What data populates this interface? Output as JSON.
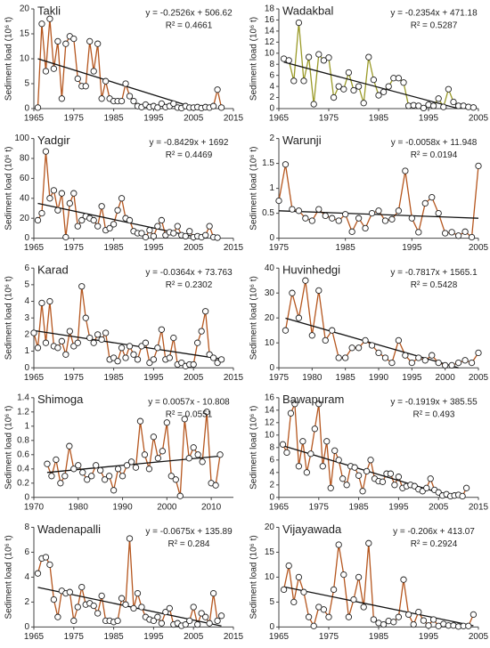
{
  "chart_data": [
    {
      "type": "line",
      "title": "Takli",
      "equation": "y = -0.2526x + 506.62",
      "r_squared": "R² = 0.4661",
      "ylabel": "Sediment load (10⁶ t)",
      "color": "#b5561e",
      "xlim": [
        1965,
        2015
      ],
      "xticks": [
        1965,
        1975,
        1985,
        1995,
        2005,
        2015
      ],
      "ylim": [
        0,
        20
      ],
      "yticks": [
        0,
        5,
        10,
        15,
        20
      ],
      "x": [
        1966,
        1967,
        1968,
        1969,
        1970,
        1971,
        1972,
        1973,
        1974,
        1975,
        1976,
        1977,
        1978,
        1979,
        1980,
        1981,
        1982,
        1983,
        1984,
        1985,
        1986,
        1987,
        1988,
        1989,
        1990,
        1991,
        1992,
        1993,
        1994,
        1995,
        1996,
        1997,
        1998,
        1999,
        2000,
        2001,
        2002,
        2003,
        2004,
        2005,
        2006,
        2007,
        2008,
        2009,
        2010,
        2011,
        2012
      ],
      "values": [
        0.2,
        17,
        7.5,
        18,
        8,
        13.5,
        2,
        13,
        14.5,
        14,
        6,
        4.5,
        4.5,
        13.5,
        7.5,
        13,
        2,
        5.5,
        2,
        1.5,
        1.5,
        1.5,
        5,
        2.5,
        1.5,
        0.5,
        0.3,
        0.8,
        0.3,
        0.5,
        0.2,
        1,
        0.3,
        0.5,
        1,
        0.2,
        0.1,
        0.5,
        0.2,
        0.2,
        0.3,
        0.1,
        0.3,
        0.2,
        0.5,
        3.8,
        0.2
      ],
      "trendline": {
        "x": [
          1966,
          2006
        ],
        "values": [
          10.0,
          0
        ]
      }
    },
    {
      "type": "line",
      "title": "Wadakbal",
      "equation": "y = -0.2354x + 471.18",
      "r_squared": "R² = 0.5287",
      "ylabel": "Sediment load (10⁶ t)",
      "color": "#9a9a28",
      "xlim": [
        1965,
        2005
      ],
      "xticks": [
        1965,
        1975,
        1985,
        1995,
        2005
      ],
      "ylim": [
        0,
        18
      ],
      "yticks": [
        0,
        2,
        4,
        6,
        8,
        10,
        12,
        14,
        16,
        18
      ],
      "x": [
        1966,
        1967,
        1968,
        1969,
        1970,
        1971,
        1972,
        1973,
        1974,
        1975,
        1976,
        1977,
        1978,
        1979,
        1980,
        1981,
        1982,
        1983,
        1984,
        1985,
        1986,
        1987,
        1988,
        1989,
        1990,
        1991,
        1992,
        1993,
        1994,
        1995,
        1996,
        1997,
        1998,
        1999,
        2000,
        2001,
        2002,
        2003,
        2004
      ],
      "values": [
        9,
        8.7,
        5,
        15.5,
        5,
        9.3,
        0.8,
        9.8,
        8.7,
        9.2,
        2,
        4,
        3.5,
        6.5,
        3.3,
        4,
        1,
        9.3,
        5.2,
        2.4,
        3,
        4,
        5.5,
        5.5,
        4.7,
        0.5,
        0.6,
        0.5,
        0.1,
        0.7,
        0.5,
        1.8,
        0.3,
        3.5,
        1.2,
        0.5,
        0.5,
        0.3,
        0.2
      ],
      "trendline": {
        "x": [
          1966,
          2001
        ],
        "values": [
          8.4,
          0
        ]
      }
    },
    {
      "type": "line",
      "title": "Yadgir",
      "equation": "y = -0.8429x + 1692",
      "r_squared": "R² = 0.4469",
      "ylabel": "Sediment load (10⁶ t)",
      "color": "#b5561e",
      "xlim": [
        1965,
        2015
      ],
      "xticks": [
        1965,
        1975,
        1985,
        1995,
        2005,
        2015
      ],
      "ylim": [
        0,
        100
      ],
      "yticks": [
        0,
        20,
        40,
        60,
        80,
        100
      ],
      "x": [
        1966,
        1967,
        1968,
        1969,
        1970,
        1971,
        1972,
        1973,
        1974,
        1975,
        1976,
        1977,
        1978,
        1979,
        1980,
        1981,
        1982,
        1983,
        1984,
        1985,
        1986,
        1987,
        1988,
        1989,
        1990,
        1991,
        1992,
        1993,
        1994,
        1995,
        1996,
        1997,
        1998,
        1999,
        2000,
        2001,
        2002,
        2003,
        2004,
        2005,
        2006,
        2007,
        2008,
        2009,
        2010,
        2011
      ],
      "values": [
        18,
        25,
        87,
        40,
        48,
        28,
        45,
        1,
        35,
        45,
        12,
        18,
        22,
        20,
        18,
        12,
        32,
        8,
        10,
        14,
        28,
        40,
        20,
        18,
        7,
        5,
        5,
        1,
        8,
        2,
        12,
        18,
        3,
        6,
        5,
        12,
        3,
        2,
        7,
        1,
        2,
        1,
        3,
        12,
        1,
        0.5
      ],
      "trendline": {
        "x": [
          1966,
          2007
        ],
        "values": [
          34.9,
          0
        ]
      }
    },
    {
      "type": "line",
      "title": "Warunji",
      "equation": "y = -0.0058x + 11.948",
      "r_squared": "R² = 0.0194",
      "ylabel": "Sediment load (10⁶ t)",
      "color": "#b5561e",
      "xlim": [
        1975,
        2005
      ],
      "xticks": [
        1975,
        1985,
        1995,
        2005
      ],
      "ylim": [
        0,
        2
      ],
      "yticks": [
        0,
        0.5,
        1,
        1.5,
        2
      ],
      "x": [
        1975,
        1976,
        1977,
        1978,
        1979,
        1980,
        1981,
        1982,
        1983,
        1984,
        1985,
        1986,
        1987,
        1988,
        1989,
        1990,
        1991,
        1992,
        1993,
        1994,
        1995,
        1996,
        1997,
        1998,
        1999,
        2000,
        2001,
        2002,
        2003,
        2004,
        2005
      ],
      "values": [
        0.75,
        1.48,
        0.58,
        0.55,
        0.4,
        0.35,
        0.58,
        0.45,
        0.4,
        0.35,
        0.48,
        0.13,
        0.4,
        0.2,
        0.5,
        0.55,
        0.35,
        0.38,
        0.55,
        1.35,
        0.4,
        0.12,
        0.7,
        0.82,
        0.5,
        0.1,
        0.12,
        0.05,
        0.13,
        0.02,
        1.45
      ],
      "trendline": {
        "x": [
          1975,
          2005
        ],
        "values": [
          0.55,
          0.4
        ]
      }
    },
    {
      "type": "line",
      "title": "Karad",
      "equation": "y = -0.0364x + 73.763",
      "r_squared": "R² = 0.2302",
      "ylabel": "Sediment load (10⁶ t)",
      "color": "#b5561e",
      "xlim": [
        1965,
        2015
      ],
      "xticks": [
        1965,
        1975,
        1985,
        1995,
        2005,
        2015
      ],
      "ylim": [
        0,
        6
      ],
      "yticks": [
        0,
        1,
        2,
        3,
        4,
        5,
        6
      ],
      "x": [
        1965,
        1966,
        1967,
        1968,
        1969,
        1970,
        1971,
        1972,
        1973,
        1974,
        1975,
        1976,
        1977,
        1978,
        1979,
        1980,
        1981,
        1982,
        1983,
        1984,
        1985,
        1986,
        1987,
        1988,
        1989,
        1990,
        1991,
        1992,
        1993,
        1994,
        1995,
        1996,
        1997,
        1998,
        1999,
        2000,
        2001,
        2002,
        2003,
        2004,
        2005,
        2006,
        2007,
        2008,
        2009,
        2010,
        2011,
        2012
      ],
      "values": [
        2.1,
        1.2,
        3.9,
        1.5,
        4,
        1.3,
        1.2,
        1.6,
        0.8,
        2.2,
        1.3,
        1.5,
        4.9,
        3,
        1.8,
        1.5,
        2,
        1.7,
        2.1,
        0.5,
        0.6,
        0.4,
        1.2,
        0.6,
        1.3,
        0.8,
        0.5,
        1.3,
        1.5,
        0.3,
        0.5,
        1.2,
        2.3,
        0.5,
        0.6,
        1.8,
        0.2,
        0.3,
        0.1,
        0.2,
        0.2,
        1.5,
        2.2,
        3.4,
        0.8,
        0.6,
        0.3,
        0.5
      ],
      "trendline": {
        "x": [
          1965,
          2012
        ],
        "values": [
          2.24,
          0.53
        ]
      }
    },
    {
      "type": "line",
      "title": "Huvinhedgi",
      "equation": "y = -0.7817x + 1565.1",
      "r_squared": "R² = 0.5428",
      "ylabel": "Sediment load (10⁶ t)",
      "color": "#b5561e",
      "xlim": [
        1975,
        2005
      ],
      "xticks": [
        1975,
        1980,
        1985,
        1990,
        1995,
        2000,
        2005
      ],
      "ylim": [
        0,
        40
      ],
      "yticks": [
        0,
        10,
        20,
        30,
        40
      ],
      "x": [
        1976,
        1977,
        1978,
        1979,
        1980,
        1981,
        1982,
        1983,
        1984,
        1985,
        1986,
        1987,
        1988,
        1989,
        1990,
        1991,
        1992,
        1993,
        1994,
        1995,
        1996,
        1997,
        1998,
        1999,
        2000,
        2001,
        2002,
        2003,
        2004,
        2005
      ],
      "values": [
        15,
        30,
        20,
        35,
        13,
        31,
        11,
        15,
        4,
        4,
        8,
        8,
        11,
        9,
        6,
        4,
        2,
        11,
        5,
        2,
        4,
        3,
        5,
        2,
        1,
        1,
        2,
        3,
        2,
        6
      ],
      "trendline": {
        "x": [
          1976,
          2002
        ],
        "values": [
          19.9,
          0
        ]
      }
    },
    {
      "type": "line",
      "title": "Shimoga",
      "equation": "y = 0.0057x - 10.808",
      "r_squared": "R² = 0.0551",
      "ylabel": "Sediment load (10⁶ t)",
      "color": "#b5561e",
      "xlim": [
        1970,
        2015
      ],
      "xticks": [
        1970,
        1980,
        1990,
        2000,
        2010
      ],
      "ylim": [
        0,
        1.4
      ],
      "yticks": [
        0,
        0.2,
        0.4,
        0.6,
        0.8,
        1,
        1.2,
        1.4
      ],
      "x": [
        1973,
        1974,
        1975,
        1976,
        1977,
        1978,
        1979,
        1980,
        1981,
        1982,
        1983,
        1984,
        1985,
        1986,
        1987,
        1988,
        1989,
        1990,
        1991,
        1992,
        1993,
        1994,
        1995,
        1996,
        1997,
        1998,
        1999,
        2000,
        2001,
        2002,
        2003,
        2004,
        2005,
        2006,
        2007,
        2008,
        2009,
        2010,
        2011,
        2012
      ],
      "values": [
        0.47,
        0.3,
        0.53,
        0.2,
        0.3,
        0.72,
        0.4,
        0.45,
        0.35,
        0.25,
        0.3,
        0.45,
        0.38,
        0.25,
        0.3,
        0.1,
        0.4,
        0.3,
        0.45,
        0.5,
        0.42,
        1.07,
        0.6,
        0.4,
        0.85,
        0.55,
        0.65,
        1.05,
        0.3,
        0.25,
        0.02,
        1.1,
        0.55,
        0.7,
        0.6,
        0.5,
        1.2,
        0.2,
        0.17,
        0.6
      ],
      "trendline": {
        "x": [
          1973,
          2012
        ],
        "values": [
          0.35,
          0.58
        ]
      }
    },
    {
      "type": "line",
      "title": "Bawapuram",
      "equation": "y = -0.1919x + 385.55",
      "r_squared": "R² = 0.493",
      "ylabel": "Sediment load (10⁶ t)",
      "color": "#b5561e",
      "xlim": [
        1965,
        2015
      ],
      "xticks": [
        1965,
        1975,
        1985,
        1995,
        2005,
        2015
      ],
      "ylim": [
        0,
        16
      ],
      "yticks": [
        0,
        2,
        4,
        6,
        8,
        10,
        12,
        14,
        16
      ],
      "x": [
        1966,
        1967,
        1968,
        1969,
        1970,
        1971,
        1972,
        1973,
        1974,
        1975,
        1976,
        1977,
        1978,
        1979,
        1980,
        1981,
        1982,
        1983,
        1984,
        1985,
        1986,
        1987,
        1988,
        1989,
        1990,
        1991,
        1992,
        1993,
        1994,
        1995,
        1996,
        1997,
        1998,
        1999,
        2000,
        2001,
        2002,
        2003,
        2004,
        2005,
        2006,
        2007,
        2008,
        2009,
        2010,
        2011,
        2012
      ],
      "values": [
        8.5,
        7.2,
        13.5,
        15,
        5,
        9,
        4,
        7,
        11,
        15,
        5,
        9,
        1.5,
        7.5,
        6,
        3,
        2,
        5,
        4.8,
        3.5,
        1,
        4.2,
        6,
        3,
        2.6,
        2.5,
        3.8,
        3.8,
        2,
        3.3,
        1.5,
        1.8,
        2,
        1.8,
        1.3,
        1,
        1.5,
        3,
        1.2,
        0.8,
        0.3,
        0.5,
        0.2,
        0.3,
        0.4,
        0.2,
        1.5
      ],
      "trendline": {
        "x": [
          1966,
          2009
        ],
        "values": [
          8.3,
          0
        ]
      }
    },
    {
      "type": "line",
      "title": "Wadenapalli",
      "equation": "y = -0.0675x + 135.89",
      "r_squared": "R² = 0.284",
      "ylabel": "Sediment load (10⁶ t)",
      "color": "#b5561e",
      "xlim": [
        1965,
        2015
      ],
      "xticks": [
        1965,
        1975,
        1985,
        1995,
        2005,
        2015
      ],
      "ylim": [
        0,
        8
      ],
      "yticks": [
        0,
        2,
        4,
        6,
        8
      ],
      "x": [
        1966,
        1967,
        1968,
        1969,
        1970,
        1971,
        1972,
        1973,
        1974,
        1975,
        1976,
        1977,
        1978,
        1979,
        1980,
        1981,
        1982,
        1983,
        1984,
        1985,
        1986,
        1987,
        1988,
        1989,
        1990,
        1991,
        1992,
        1993,
        1994,
        1995,
        1996,
        1997,
        1998,
        1999,
        2000,
        2001,
        2002,
        2003,
        2004,
        2005,
        2006,
        2007,
        2008,
        2009,
        2010,
        2011,
        2012
      ],
      "values": [
        4.3,
        5.5,
        5.6,
        5,
        2.2,
        0.8,
        2.9,
        2.7,
        2.8,
        0.5,
        1.6,
        3.2,
        1.8,
        1.9,
        1.7,
        1.1,
        2.5,
        0.5,
        0.5,
        0.4,
        0.5,
        2.3,
        1.8,
        7.1,
        1.5,
        2.7,
        1.6,
        0.8,
        0.6,
        0.5,
        0.8,
        0.3,
        1.2,
        1.5,
        0.2,
        0.3,
        0.1,
        0.2,
        0.5,
        1.6,
        0.2,
        1.1,
        0.8,
        0.3,
        2.7,
        0.5,
        0.9
      ],
      "trendline": {
        "x": [
          1966,
          2012
        ],
        "values": [
          3.18,
          0.08
        ]
      }
    },
    {
      "type": "line",
      "title": "Vijayawada",
      "equation": "y = -0.206x + 413.07",
      "r_squared": "R² = 0.2924",
      "ylabel": "Sediment load (10⁶ t)",
      "color": "#b5561e",
      "xlim": [
        1965,
        2005
      ],
      "xticks": [
        1965,
        1975,
        1985,
        1995,
        2005
      ],
      "ylim": [
        0,
        20
      ],
      "yticks": [
        0,
        5,
        10,
        15,
        20
      ],
      "x": [
        1966,
        1967,
        1968,
        1969,
        1970,
        1971,
        1972,
        1973,
        1974,
        1975,
        1976,
        1977,
        1978,
        1979,
        1980,
        1981,
        1982,
        1983,
        1984,
        1985,
        1986,
        1987,
        1988,
        1989,
        1990,
        1991,
        1992,
        1993,
        1994,
        1995,
        1996,
        1997,
        1998,
        1999,
        2000,
        2001,
        2002,
        2003,
        2004
      ],
      "values": [
        7.5,
        12.3,
        5,
        10,
        7,
        2,
        0.2,
        4,
        3.5,
        2,
        7.5,
        16.5,
        10.5,
        2,
        5.5,
        10,
        4,
        16.8,
        1.5,
        0.8,
        0.5,
        1.2,
        1,
        2,
        9.5,
        2.5,
        0.5,
        3,
        1.3,
        0.3,
        1.5,
        0.2,
        0.6,
        0.3,
        0.3,
        0.1,
        0.2,
        0.2,
        2.5
      ],
      "trendline": {
        "x": [
          1966,
          2004
        ],
        "values": [
          8.07,
          0.25
        ]
      }
    }
  ]
}
